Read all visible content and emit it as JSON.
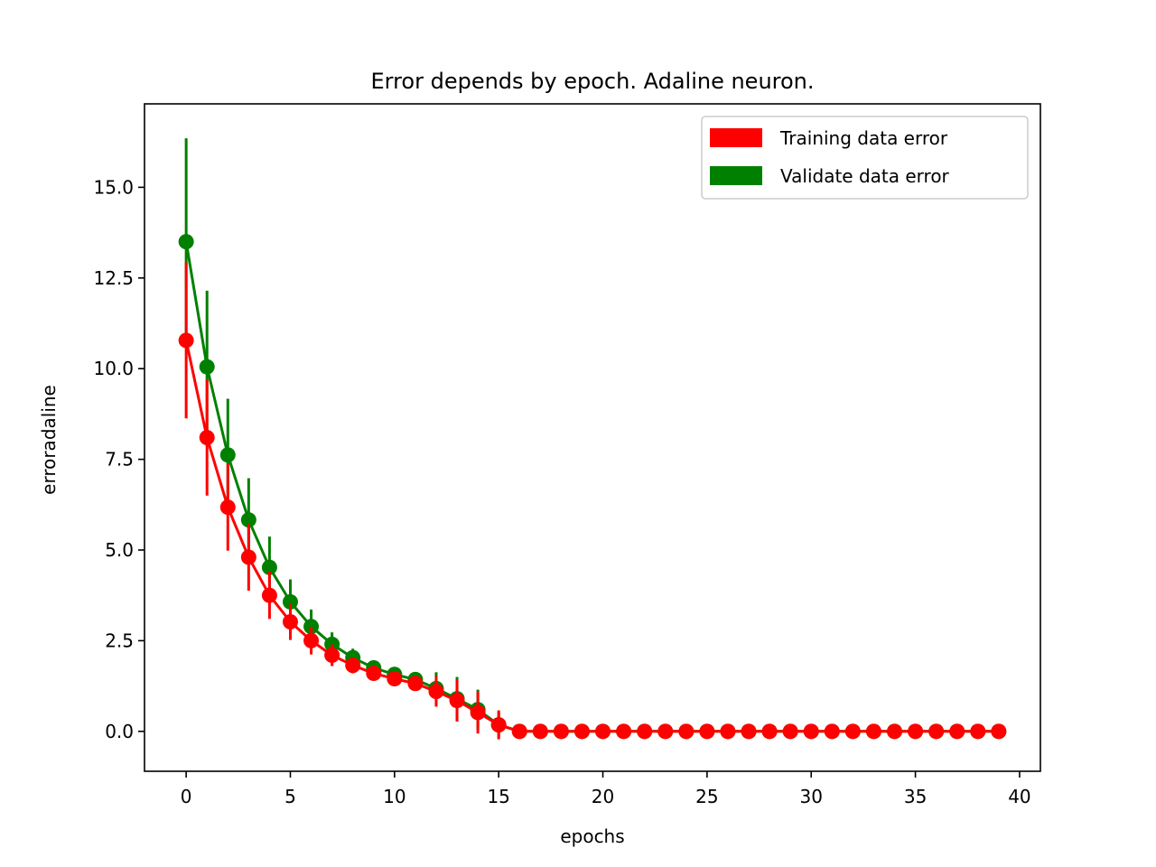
{
  "chart_data": {
    "type": "line",
    "title": "Error depends by epoch. Adaline neuron.",
    "xlabel": "epochs",
    "ylabel": "erroradaline",
    "xlim": [
      -2,
      41
    ],
    "ylim": [
      -1.1,
      17.3
    ],
    "xticks": [
      0,
      5,
      10,
      15,
      20,
      25,
      30,
      35,
      40
    ],
    "xtick_labels": [
      "0",
      "5",
      "10",
      "15",
      "20",
      "25",
      "30",
      "35",
      "40"
    ],
    "yticks": [
      0,
      2.5,
      5,
      7.5,
      10,
      12.5,
      15
    ],
    "ytick_labels": [
      "0.0",
      "2.5",
      "5.0",
      "7.5",
      "10.0",
      "12.5",
      "15.0"
    ],
    "grid": false,
    "legend_position": "top-right",
    "x": [
      0,
      1,
      2,
      3,
      4,
      5,
      6,
      7,
      8,
      9,
      10,
      11,
      12,
      13,
      14,
      15,
      16,
      17,
      18,
      19,
      20,
      21,
      22,
      23,
      24,
      25,
      26,
      27,
      28,
      29,
      30,
      31,
      32,
      33,
      34,
      35,
      36,
      37,
      38,
      39
    ],
    "series": [
      {
        "name": "Validate data error",
        "color": "#008000",
        "values": [
          13.5,
          10.05,
          7.62,
          5.83,
          4.52,
          3.57,
          2.89,
          2.4,
          2.03,
          1.75,
          1.57,
          1.43,
          1.18,
          0.9,
          0.6,
          0.18,
          0,
          0,
          0,
          0,
          0,
          0,
          0,
          0,
          0,
          0,
          0,
          0,
          0,
          0,
          0,
          0,
          0,
          0,
          0,
          0,
          0,
          0,
          0,
          0
        ],
        "errors": [
          2.85,
          2.1,
          1.55,
          1.15,
          0.85,
          0.62,
          0.47,
          0.33,
          0.25,
          0.2,
          0.18,
          0.18,
          0.45,
          0.6,
          0.55,
          0.35,
          0,
          0,
          0,
          0,
          0,
          0,
          0,
          0,
          0,
          0,
          0,
          0,
          0,
          0,
          0,
          0,
          0,
          0,
          0,
          0,
          0,
          0,
          0,
          0
        ]
      },
      {
        "name": "Training data error",
        "color": "#ff0000",
        "values": [
          10.78,
          8.1,
          6.18,
          4.8,
          3.75,
          3.02,
          2.5,
          2.1,
          1.82,
          1.6,
          1.45,
          1.32,
          1.1,
          0.85,
          0.52,
          0.18,
          0,
          0,
          0,
          0,
          0,
          0,
          0,
          0,
          0,
          0,
          0,
          0,
          0,
          0,
          0,
          0,
          0,
          0,
          0,
          0,
          0,
          0,
          0,
          0
        ],
        "errors": [
          2.15,
          1.6,
          1.2,
          0.92,
          0.65,
          0.5,
          0.38,
          0.3,
          0.22,
          0.2,
          0.18,
          0.18,
          0.42,
          0.58,
          0.58,
          0.4,
          0,
          0,
          0,
          0,
          0,
          0,
          0,
          0,
          0,
          0,
          0,
          0,
          0,
          0,
          0,
          0,
          0,
          0,
          0,
          0,
          0,
          0,
          0,
          0
        ]
      }
    ],
    "legend": [
      {
        "name": "Training data error",
        "color": "#ff0000"
      },
      {
        "name": "Validate data error",
        "color": "#008000"
      }
    ]
  }
}
